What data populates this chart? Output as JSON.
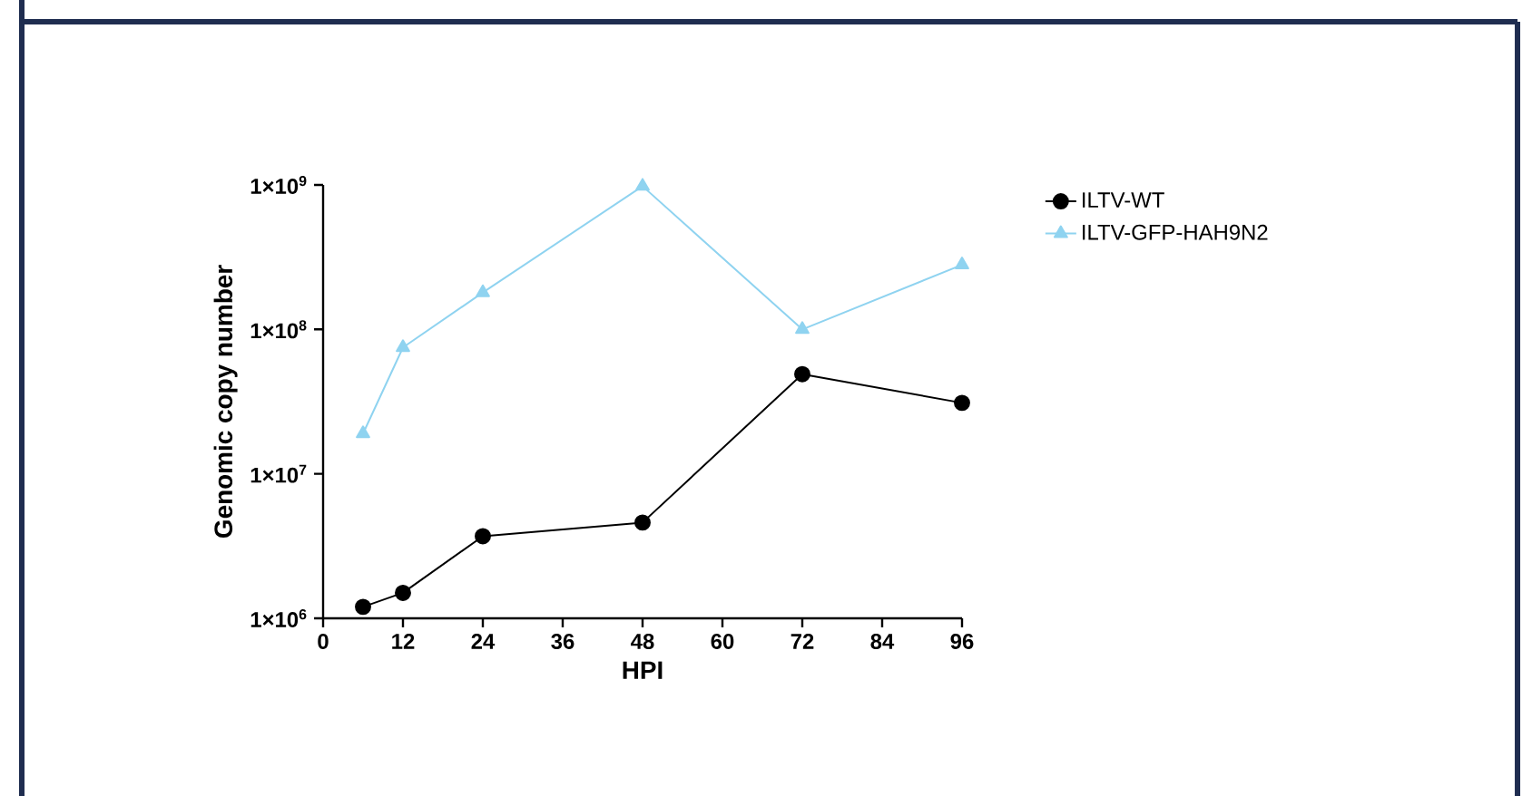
{
  "chart_data": {
    "type": "line",
    "xlabel": "HPI",
    "ylabel": "Genomic copy number",
    "log": "y",
    "x": [
      6,
      12,
      24,
      48,
      72,
      96
    ],
    "series": [
      {
        "name": "ILTV-WT",
        "color": "#000000",
        "marker": "circle",
        "values": [
          1200000,
          1500000,
          3700000,
          4600000,
          49000000,
          31000000
        ]
      },
      {
        "name": "ILTV-GFP-HAH9N2",
        "color": "#8fd3f0",
        "marker": "triangle",
        "values": [
          19000000,
          75000000,
          180000000,
          980000000,
          100000000,
          280000000
        ]
      }
    ],
    "xlim": [
      0,
      96
    ],
    "xticks": [
      0,
      12,
      24,
      36,
      48,
      60,
      72,
      84,
      96
    ],
    "ylim": [
      1000000,
      1000000000
    ],
    "yticks": [
      {
        "value": 1000000,
        "label": "1×10$^{6}$"
      },
      {
        "value": 10000000,
        "label": "1×10$^{7}$"
      },
      {
        "value": 100000000,
        "label": "1×10$^{8}$"
      },
      {
        "value": 1000000000,
        "label": "1×10$^{9}$"
      }
    ],
    "grid": false,
    "legend": "right",
    "line_style": "solid"
  }
}
